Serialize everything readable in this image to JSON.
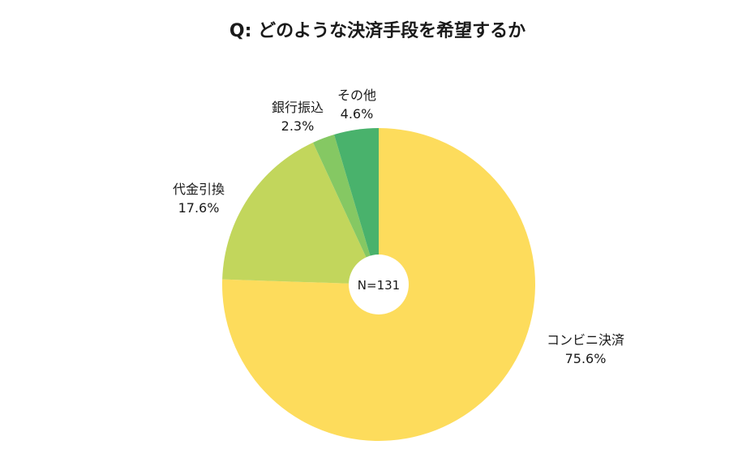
{
  "chart_data": {
    "type": "pie",
    "title": "Q: どのような決済手段を希望するか",
    "center_label": "N=131",
    "slices": [
      {
        "label": "コンビニ決済",
        "value": 75.6,
        "value_label": "75.6%",
        "color": "#fddc5c"
      },
      {
        "label": "代金引換",
        "value": 17.6,
        "value_label": "17.6%",
        "color": "#c2d65c"
      },
      {
        "label": "銀行振込",
        "value": 2.3,
        "value_label": "2.3%",
        "color": "#85c863"
      },
      {
        "label": "その他",
        "value": 4.6,
        "value_label": "4.6%",
        "color": "#49b26c"
      }
    ],
    "start_angle": "12 o'clock",
    "direction": "clockwise",
    "legend": "none"
  }
}
